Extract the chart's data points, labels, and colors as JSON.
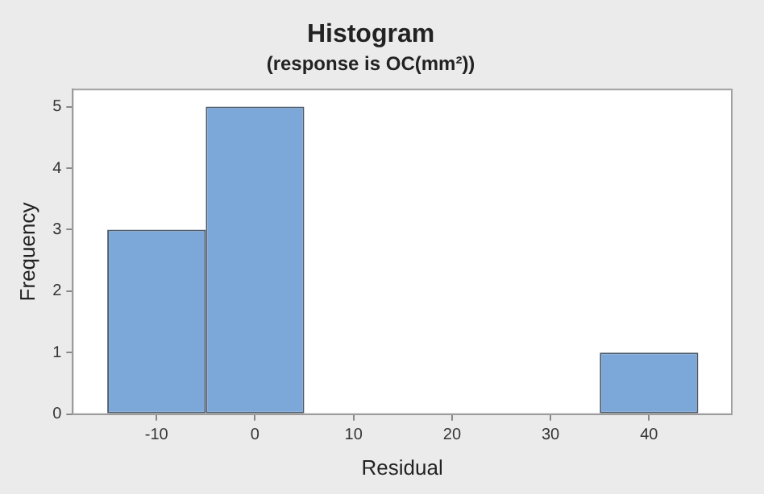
{
  "chart_data": {
    "type": "histogram",
    "title": "Histogram",
    "subtitle": "(response is OC(mm²))",
    "xlabel": "Residual",
    "ylabel": "Frequency",
    "bins": [
      -15,
      -5,
      5,
      15,
      25,
      35,
      45
    ],
    "values": [
      3,
      5,
      0,
      0,
      0,
      1
    ],
    "color": "#7ba7d9",
    "xlim": [
      -18.5,
      48.4
    ],
    "xticks": [
      -10,
      0,
      10,
      20,
      30,
      40
    ],
    "ylim": [
      0,
      5.28
    ],
    "yticks": [
      0,
      1,
      2,
      3,
      4,
      5
    ],
    "grid": false,
    "legend": false
  }
}
